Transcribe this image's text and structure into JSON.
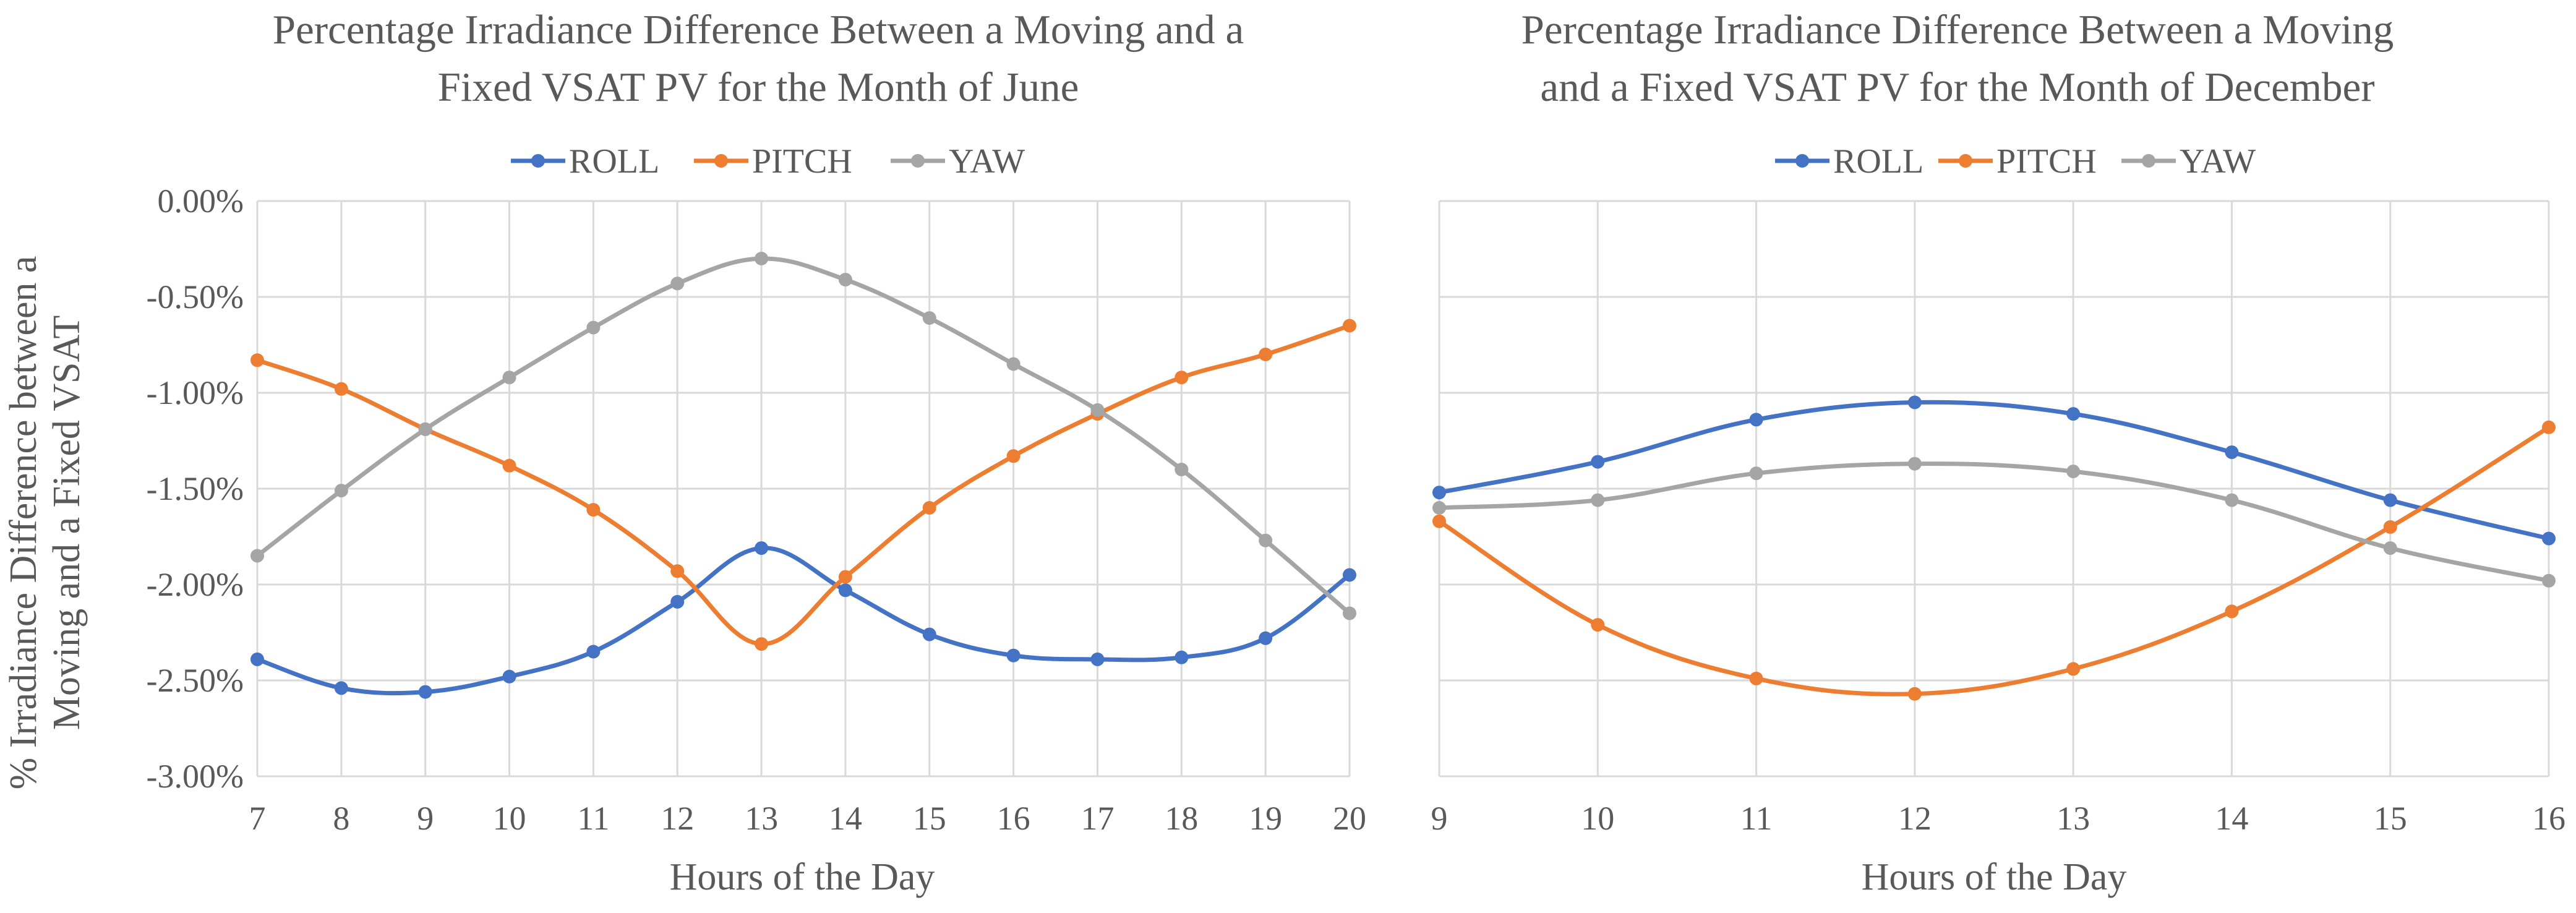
{
  "shared": {
    "ylabel_line1": "% Irradiance Difference between a",
    "ylabel_line2": "Moving and a Fixed VSAT"
  },
  "chart_data": [
    {
      "type": "line",
      "title_line1": "Percentage Irradiance Difference Between a Moving and a",
      "title_line2": "Fixed VSAT PV for the Month of June",
      "xlabel": "Hours of the Day",
      "ylim": [
        -3.0,
        0.0
      ],
      "y_ticks": [
        "0.00%",
        "-0.50%",
        "-1.00%",
        "-1.50%",
        "-2.00%",
        "-2.50%",
        "-3.00%"
      ],
      "x": [
        7,
        8,
        9,
        10,
        11,
        12,
        13,
        14,
        15,
        16,
        17,
        18,
        19,
        20
      ],
      "series": [
        {
          "name": "ROLL",
          "color": "#4472C4",
          "values": [
            -2.39,
            -2.54,
            -2.56,
            -2.48,
            -2.35,
            -2.09,
            -1.81,
            -2.03,
            -2.26,
            -2.37,
            -2.39,
            -2.38,
            -2.28,
            -1.95
          ]
        },
        {
          "name": "PITCH",
          "color": "#ED7D31",
          "values": [
            -0.83,
            -0.98,
            -1.19,
            -1.38,
            -1.61,
            -1.93,
            -2.31,
            -1.96,
            -1.6,
            -1.33,
            -1.11,
            -0.92,
            -0.8,
            -0.65
          ]
        },
        {
          "name": "YAW",
          "color": "#A5A5A5",
          "values": [
            -1.85,
            -1.51,
            -1.19,
            -0.92,
            -0.66,
            -0.43,
            -0.3,
            -0.41,
            -0.61,
            -0.85,
            -1.09,
            -1.4,
            -1.77,
            -2.15
          ]
        }
      ]
    },
    {
      "type": "line",
      "title_line1": "Percentage Irradiance Difference Between a Moving",
      "title_line2": "and a Fixed VSAT PV for the Month of December",
      "xlabel": "Hours of the Day",
      "ylim": [
        -3.0,
        0.0
      ],
      "x": [
        9,
        10,
        11,
        12,
        13,
        14,
        15,
        16
      ],
      "series": [
        {
          "name": "ROLL",
          "color": "#4472C4",
          "values": [
            -1.52,
            -1.36,
            -1.14,
            -1.05,
            -1.11,
            -1.31,
            -1.56,
            -1.76
          ]
        },
        {
          "name": "PITCH",
          "color": "#ED7D31",
          "values": [
            -1.67,
            -2.21,
            -2.49,
            -2.57,
            -2.44,
            -2.14,
            -1.7,
            -1.18
          ]
        },
        {
          "name": "YAW",
          "color": "#A5A5A5",
          "values": [
            -1.6,
            -1.56,
            -1.42,
            -1.37,
            -1.41,
            -1.56,
            -1.81,
            -1.98
          ]
        }
      ]
    }
  ]
}
